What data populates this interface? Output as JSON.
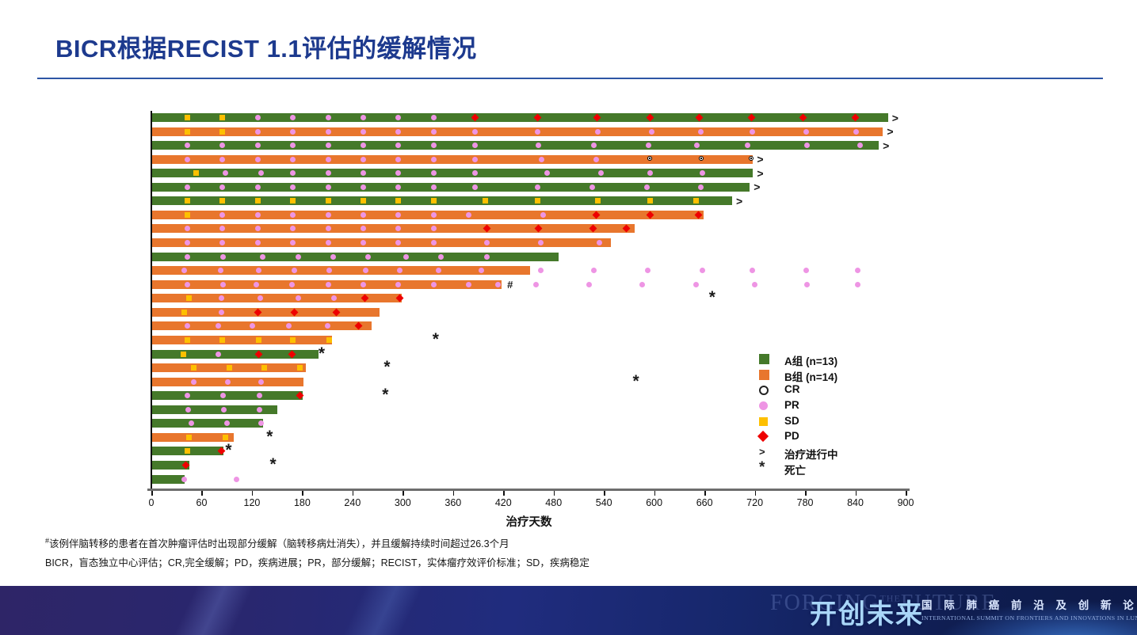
{
  "slide": {
    "title": "BICR根据RECIST 1.1评估的缓解情况",
    "footnote_marker": "#",
    "footnotes": [
      "该例伴脑转移的患者在首次肿瘤评估时出现部分缓解（脑转移病灶消失），并且缓解持续时间超过26.3个月",
      "BICR，盲态独立中心评估；CR,完全缓解；PD，疾病进展；PR，部分缓解；RECIST，实体瘤疗效评价标准；SD，疾病稳定"
    ]
  },
  "banner": {
    "ghost_left": "FORGING",
    "ghost_mid": "THE",
    "ghost_right": "FUTURE",
    "logo_cn": "开创未来",
    "subtitle_cn": "国 际 肺 癌 前 沿 及 创 新 论 坛",
    "subtitle_en": "INTERNATIONAL SUMMIT ON FRONTIERS AND INNOVATIONS IN LUNG CANCER"
  },
  "colors": {
    "group_a_green": "#45792a",
    "group_b_orange": "#e8762d",
    "pr_pink": "#ee95e4",
    "sd_yellow": "#fec000",
    "pd_red": "#ee0000",
    "title_blue": "#1d3a8e",
    "banner_blue": "#1a2a75"
  },
  "chart_data": {
    "type": "bar",
    "subtype": "swimmer-plot",
    "xlabel": "治疗天数",
    "xlim": [
      0,
      900
    ],
    "x_ticks": [
      0,
      60,
      120,
      180,
      240,
      300,
      360,
      420,
      480,
      540,
      600,
      660,
      720,
      780,
      840,
      900
    ],
    "grid": false,
    "legend_position": "right-inside",
    "legend": [
      {
        "symbol": "square-a",
        "label": "A组 (n=13)"
      },
      {
        "symbol": "square-b",
        "label": "B组 (n=14)"
      },
      {
        "symbol": "cr",
        "label": "CR"
      },
      {
        "symbol": "pr",
        "label": "PR"
      },
      {
        "symbol": "sd",
        "label": "SD"
      },
      {
        "symbol": "pd",
        "label": "PD"
      },
      {
        "symbol": "ongoing",
        "label": "治疗进行中"
      },
      {
        "symbol": "death",
        "label": "死亡"
      }
    ],
    "marker_types": {
      "CR": "完全缓解",
      "PR": "部分缓解",
      "SD": "疾病稳定",
      "PD": "疾病进展"
    },
    "patients": [
      {
        "group": "A",
        "days": 878,
        "ongoing": true,
        "markers": [
          [
            42,
            "SD"
          ],
          [
            84,
            "SD"
          ],
          [
            126,
            "PR"
          ],
          [
            168,
            "PR"
          ],
          [
            210,
            "PR"
          ],
          [
            252,
            "PR"
          ],
          [
            294,
            "PR"
          ],
          [
            336,
            "PR"
          ],
          [
            385,
            "PD"
          ],
          [
            460,
            "PD"
          ],
          [
            531,
            "PD"
          ],
          [
            594,
            "PD"
          ],
          [
            653,
            "PD"
          ],
          [
            715,
            "PD"
          ],
          [
            777,
            "PD"
          ],
          [
            839,
            "PD"
          ]
        ]
      },
      {
        "group": "B",
        "days": 872,
        "ongoing": true,
        "markers": [
          [
            42,
            "SD"
          ],
          [
            84,
            "SD"
          ],
          [
            126,
            "PR"
          ],
          [
            168,
            "PR"
          ],
          [
            210,
            "PR"
          ],
          [
            252,
            "PR"
          ],
          [
            294,
            "PR"
          ],
          [
            336,
            "PR"
          ],
          [
            385,
            "PR"
          ],
          [
            460,
            "PR"
          ],
          [
            532,
            "PR"
          ],
          [
            596,
            "PR"
          ],
          [
            655,
            "PR"
          ],
          [
            716,
            "PR"
          ],
          [
            780,
            "PR"
          ],
          [
            840,
            "PR"
          ]
        ]
      },
      {
        "group": "A",
        "days": 867,
        "ongoing": true,
        "markers": [
          [
            42,
            "PR"
          ],
          [
            84,
            "PR"
          ],
          [
            126,
            "PR"
          ],
          [
            168,
            "PR"
          ],
          [
            210,
            "PR"
          ],
          [
            252,
            "PR"
          ],
          [
            294,
            "PR"
          ],
          [
            336,
            "PR"
          ],
          [
            385,
            "PR"
          ],
          [
            461,
            "PR"
          ],
          [
            527,
            "PR"
          ],
          [
            592,
            "PR"
          ],
          [
            650,
            "PR"
          ],
          [
            710,
            "PR"
          ],
          [
            781,
            "PR"
          ],
          [
            845,
            "PR"
          ]
        ]
      },
      {
        "group": "B",
        "days": 717,
        "ongoing": true,
        "markers": [
          [
            42,
            "PR"
          ],
          [
            84,
            "PR"
          ],
          [
            126,
            "PR"
          ],
          [
            168,
            "PR"
          ],
          [
            210,
            "PR"
          ],
          [
            252,
            "PR"
          ],
          [
            294,
            "PR"
          ],
          [
            336,
            "PR"
          ],
          [
            385,
            "PR"
          ],
          [
            465,
            "PR"
          ],
          [
            530,
            "PR"
          ],
          [
            594,
            "CR"
          ],
          [
            656,
            "CR"
          ],
          [
            715,
            "CR"
          ]
        ]
      },
      {
        "group": "A",
        "days": 717,
        "ongoing": true,
        "markers": [
          [
            52,
            "SD"
          ],
          [
            87,
            "PR"
          ],
          [
            130,
            "PR"
          ],
          [
            168,
            "PR"
          ],
          [
            210,
            "PR"
          ],
          [
            252,
            "PR"
          ],
          [
            294,
            "PR"
          ],
          [
            336,
            "PR"
          ],
          [
            385,
            "PR"
          ],
          [
            471,
            "PR"
          ],
          [
            536,
            "PR"
          ],
          [
            594,
            "PR"
          ],
          [
            657,
            "PR"
          ]
        ]
      },
      {
        "group": "A",
        "days": 713,
        "ongoing": true,
        "markers": [
          [
            42,
            "PR"
          ],
          [
            84,
            "PR"
          ],
          [
            126,
            "PR"
          ],
          [
            168,
            "PR"
          ],
          [
            210,
            "PR"
          ],
          [
            252,
            "PR"
          ],
          [
            294,
            "PR"
          ],
          [
            336,
            "PR"
          ],
          [
            385,
            "PR"
          ],
          [
            460,
            "PR"
          ],
          [
            525,
            "PR"
          ],
          [
            590,
            "PR"
          ],
          [
            655,
            "PR"
          ]
        ]
      },
      {
        "group": "A",
        "days": 692,
        "ongoing": true,
        "markers": [
          [
            42,
            "SD"
          ],
          [
            84,
            "SD"
          ],
          [
            126,
            "SD"
          ],
          [
            168,
            "SD"
          ],
          [
            210,
            "SD"
          ],
          [
            252,
            "SD"
          ],
          [
            294,
            "SD"
          ],
          [
            336,
            "SD"
          ],
          [
            398,
            "SD"
          ],
          [
            460,
            "SD"
          ],
          [
            532,
            "SD"
          ],
          [
            594,
            "SD"
          ],
          [
            649,
            "SD"
          ]
        ]
      },
      {
        "group": "B",
        "days": 658,
        "markers": [
          [
            42,
            "SD"
          ],
          [
            84,
            "PR"
          ],
          [
            126,
            "PR"
          ],
          [
            168,
            "PR"
          ],
          [
            210,
            "PR"
          ],
          [
            252,
            "PR"
          ],
          [
            294,
            "PR"
          ],
          [
            336,
            "PR"
          ],
          [
            378,
            "PR"
          ],
          [
            467,
            "PR"
          ],
          [
            530,
            "PD"
          ],
          [
            594,
            "PD"
          ],
          [
            652,
            "PD"
          ]
        ]
      },
      {
        "group": "B",
        "days": 576,
        "markers": [
          [
            42,
            "PR"
          ],
          [
            84,
            "PR"
          ],
          [
            126,
            "PR"
          ],
          [
            168,
            "PR"
          ],
          [
            210,
            "PR"
          ],
          [
            252,
            "PR"
          ],
          [
            294,
            "PR"
          ],
          [
            336,
            "PR"
          ],
          [
            399,
            "PD"
          ],
          [
            461,
            "PD"
          ],
          [
            526,
            "PD"
          ],
          [
            566,
            "PD"
          ]
        ]
      },
      {
        "group": "B",
        "days": 547,
        "markers": [
          [
            42,
            "PR"
          ],
          [
            84,
            "PR"
          ],
          [
            126,
            "PR"
          ],
          [
            168,
            "PR"
          ],
          [
            210,
            "PR"
          ],
          [
            252,
            "PR"
          ],
          [
            294,
            "PR"
          ],
          [
            336,
            "PR"
          ],
          [
            399,
            "PR"
          ],
          [
            464,
            "PR"
          ],
          [
            534,
            "PR"
          ]
        ]
      },
      {
        "group": "A",
        "days": 485,
        "markers": [
          [
            42,
            "PR"
          ],
          [
            85,
            "PR"
          ],
          [
            132,
            "PR"
          ],
          [
            174,
            "PR"
          ],
          [
            216,
            "PR"
          ],
          [
            258,
            "PR"
          ],
          [
            303,
            "PR"
          ],
          [
            345,
            "PR"
          ],
          [
            399,
            "PR"
          ]
        ]
      },
      {
        "group": "B",
        "days": 451,
        "markers": [
          [
            38,
            "PR"
          ],
          [
            82,
            "PR"
          ],
          [
            127,
            "PR"
          ],
          [
            170,
            "PR"
          ],
          [
            211,
            "PR"
          ],
          [
            255,
            "PR"
          ],
          [
            295,
            "PR"
          ],
          [
            342,
            "PR"
          ],
          [
            393,
            "PR"
          ]
        ],
        "post_markers": [
          [
            464,
            "PR"
          ],
          [
            527,
            "PR"
          ],
          [
            591,
            "PR"
          ],
          [
            657,
            "PR"
          ],
          [
            716,
            "PR"
          ],
          [
            780,
            "PR"
          ],
          [
            842,
            "PR"
          ]
        ]
      },
      {
        "group": "B",
        "days": 417,
        "hash": true,
        "markers": [
          [
            42,
            "PR"
          ],
          [
            85,
            "PR"
          ],
          [
            124,
            "PR"
          ],
          [
            167,
            "PR"
          ],
          [
            210,
            "PR"
          ],
          [
            252,
            "PR"
          ],
          [
            294,
            "PR"
          ],
          [
            336,
            "PR"
          ],
          [
            378,
            "PR"
          ],
          [
            413,
            "PR"
          ]
        ],
        "post_markers": [
          [
            458,
            "PR"
          ],
          [
            521,
            "PR"
          ],
          [
            585,
            "PR"
          ],
          [
            649,
            "PR"
          ],
          [
            719,
            "PR"
          ],
          [
            781,
            "PR"
          ],
          [
            842,
            "PR"
          ]
        ]
      },
      {
        "group": "B",
        "days": 298,
        "death_day": 671,
        "markers": [
          [
            44,
            "SD"
          ],
          [
            83,
            "PR"
          ],
          [
            129,
            "PR"
          ],
          [
            174,
            "PR"
          ],
          [
            217,
            "PR"
          ],
          [
            254,
            "PD"
          ],
          [
            295,
            "PD"
          ]
        ]
      },
      {
        "group": "B",
        "days": 271,
        "markers": [
          [
            38,
            "SD"
          ],
          [
            83,
            "PR"
          ],
          [
            126,
            "PD"
          ],
          [
            170,
            "PD"
          ],
          [
            220,
            "PD"
          ]
        ]
      },
      {
        "group": "B",
        "days": 262,
        "markers": [
          [
            42,
            "PR"
          ],
          [
            79,
            "PR"
          ],
          [
            120,
            "PR"
          ],
          [
            163,
            "PR"
          ],
          [
            209,
            "PR"
          ],
          [
            246,
            "PD"
          ]
        ]
      },
      {
        "group": "B",
        "days": 215,
        "death_day": 341,
        "markers": [
          [
            42,
            "SD"
          ],
          [
            84,
            "SD"
          ],
          [
            127,
            "SD"
          ],
          [
            168,
            "SD"
          ],
          [
            211,
            "SD"
          ]
        ]
      },
      {
        "group": "A",
        "days": 199,
        "death_day": 205,
        "markers": [
          [
            37,
            "SD"
          ],
          [
            79,
            "PR"
          ],
          [
            127,
            "PD"
          ],
          [
            167,
            "PD"
          ]
        ]
      },
      {
        "group": "B",
        "days": 183,
        "death_day": 283,
        "markers": [
          [
            50,
            "SD"
          ],
          [
            92,
            "SD"
          ],
          [
            134,
            "SD"
          ],
          [
            176,
            "SD"
          ]
        ]
      },
      {
        "group": "B",
        "days": 181,
        "death_day": 580,
        "markers": [
          [
            50,
            "PR"
          ],
          [
            90,
            "PR"
          ],
          [
            130,
            "PR"
          ]
        ]
      },
      {
        "group": "A",
        "days": 180,
        "death_day": 281,
        "markers": [
          [
            42,
            "PR"
          ],
          [
            85,
            "PR"
          ],
          [
            128,
            "PR"
          ],
          [
            176,
            "PD"
          ]
        ]
      },
      {
        "group": "A",
        "days": 149,
        "markers": [
          [
            43,
            "PR"
          ],
          [
            86,
            "PR"
          ],
          [
            128,
            "PR"
          ]
        ]
      },
      {
        "group": "A",
        "days": 132,
        "markers": [
          [
            47,
            "PR"
          ],
          [
            89,
            "PR"
          ],
          [
            130,
            "PR"
          ]
        ]
      },
      {
        "group": "B",
        "days": 97,
        "death_day": 143,
        "markers": [
          [
            44,
            "SD"
          ],
          [
            87,
            "SD"
          ]
        ]
      },
      {
        "group": "A",
        "days": 85,
        "death_day": 94,
        "markers": [
          [
            42,
            "SD"
          ],
          [
            83,
            "PD"
          ]
        ]
      },
      {
        "group": "A",
        "days": 44,
        "death_day": 147,
        "markers": [
          [
            40,
            "PD"
          ]
        ]
      },
      {
        "group": "A",
        "days": 39,
        "markers": [
          [
            38,
            "PR"
          ]
        ],
        "post_markers": [
          [
            101,
            "PR"
          ]
        ]
      }
    ]
  }
}
